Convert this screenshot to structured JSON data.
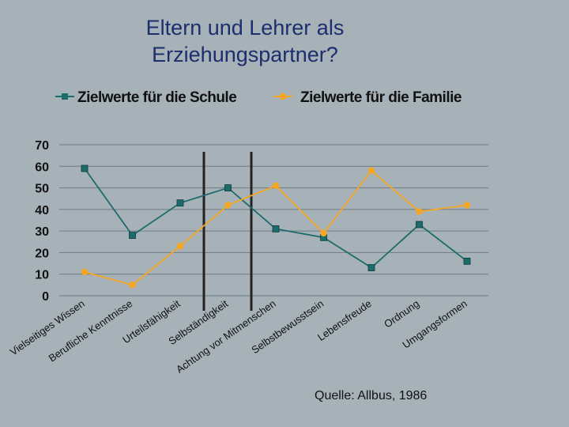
{
  "slide": {
    "title_line1": "Eltern und Lehrer als",
    "title_line2": "Erziehungspartner?",
    "source": "Quelle: Allbus, 1986"
  },
  "chart_data": {
    "type": "line",
    "title": "Eltern und Lehrer als Erziehungspartner?",
    "categories": [
      "Vielseitiges Wissen",
      "Berufliche Kenntnisse",
      "Urteilsfähigkeit",
      "Selbständigkeit",
      "Achtung vor Mitmenschen",
      "Selbstbewusstsein",
      "Lebensfreude",
      "Ordnung",
      "Umgangsformen"
    ],
    "series": [
      {
        "name": "Zielwerte für die Schule",
        "color": "#1d6b6b",
        "marker": "square",
        "values": [
          59,
          28,
          43,
          50,
          31,
          27,
          13,
          33,
          16
        ]
      },
      {
        "name": "Zielwerte für die Familie",
        "color": "#f5a623",
        "marker": "circle",
        "values": [
          11,
          5,
          23,
          42,
          51,
          29,
          58,
          39,
          42
        ]
      }
    ],
    "ylim": [
      0,
      70
    ],
    "yticks": [
      "70",
      "60",
      "50",
      "40",
      "30",
      "20",
      "10",
      "0"
    ],
    "grid": true,
    "legend": "top",
    "xlabel": "",
    "ylabel": ""
  }
}
